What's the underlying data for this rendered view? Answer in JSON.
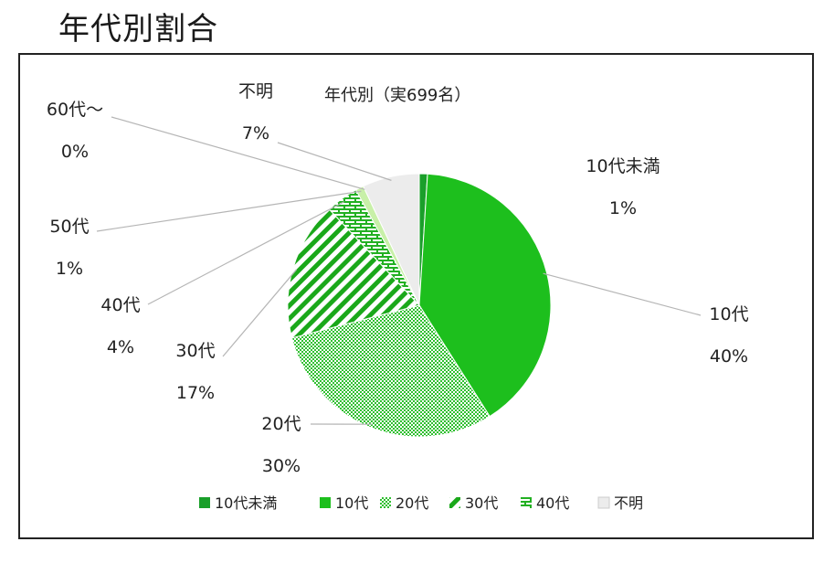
{
  "page": {
    "title": "年代別割合"
  },
  "chart_data": {
    "type": "pie",
    "title": "年代別（実699名）",
    "slices": [
      {
        "label": "10代未満",
        "value": 1,
        "display": "1%",
        "color": "#1a9f2a",
        "pattern": "solid"
      },
      {
        "label": "10代",
        "value": 40,
        "display": "40%",
        "color": "#1dbf1d",
        "pattern": "solid"
      },
      {
        "label": "20代",
        "value": 30,
        "display": "30%",
        "color": "#2fbf2f",
        "pattern": "dots"
      },
      {
        "label": "30代",
        "value": 17,
        "display": "17%",
        "color": "#1aa81a",
        "pattern": "diagonal"
      },
      {
        "label": "40代",
        "value": 4,
        "display": "4%",
        "color": "#22b022",
        "pattern": "brick"
      },
      {
        "label": "50代",
        "value": 1,
        "display": "1%",
        "color": "#c8f0a8",
        "pattern": "solid"
      },
      {
        "label": "60代～",
        "value": 0,
        "display": "0%",
        "color": "#7a8a7a",
        "pattern": "solid"
      },
      {
        "label": "不明",
        "value": 7,
        "display": "7%",
        "color": "#ececec",
        "pattern": "solid"
      }
    ],
    "legend": {
      "position": "bottom",
      "entries": [
        "10代未満",
        "10代",
        "20代",
        "30代",
        "40代",
        "不明"
      ]
    }
  }
}
